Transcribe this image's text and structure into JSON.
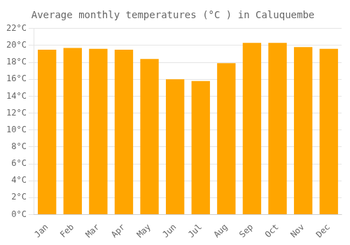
{
  "chart_data": {
    "type": "bar",
    "title": "Average monthly temperatures (°C ) in Caluquembe",
    "categories": [
      "Jan",
      "Feb",
      "Mar",
      "Apr",
      "May",
      "Jun",
      "Jul",
      "Aug",
      "Sep",
      "Oct",
      "Nov",
      "Dec"
    ],
    "values": [
      19.5,
      19.7,
      19.6,
      19.5,
      18.4,
      16.0,
      15.8,
      17.9,
      20.3,
      20.3,
      19.8,
      19.6
    ],
    "color": "#FFA500",
    "ylim": [
      0,
      22
    ],
    "yticks": [
      {
        "value": 0,
        "label": "0°C"
      },
      {
        "value": 2,
        "label": "2°C"
      },
      {
        "value": 4,
        "label": "4°C"
      },
      {
        "value": 6,
        "label": "6°C"
      },
      {
        "value": 8,
        "label": "8°C"
      },
      {
        "value": 10,
        "label": "10°C"
      },
      {
        "value": 12,
        "label": "12°C"
      },
      {
        "value": 14,
        "label": "14°C"
      },
      {
        "value": 16,
        "label": "16°C"
      },
      {
        "value": 18,
        "label": "18°C"
      },
      {
        "value": 20,
        "label": "20°C"
      },
      {
        "value": 22,
        "label": "22°C"
      }
    ],
    "grid": true
  }
}
